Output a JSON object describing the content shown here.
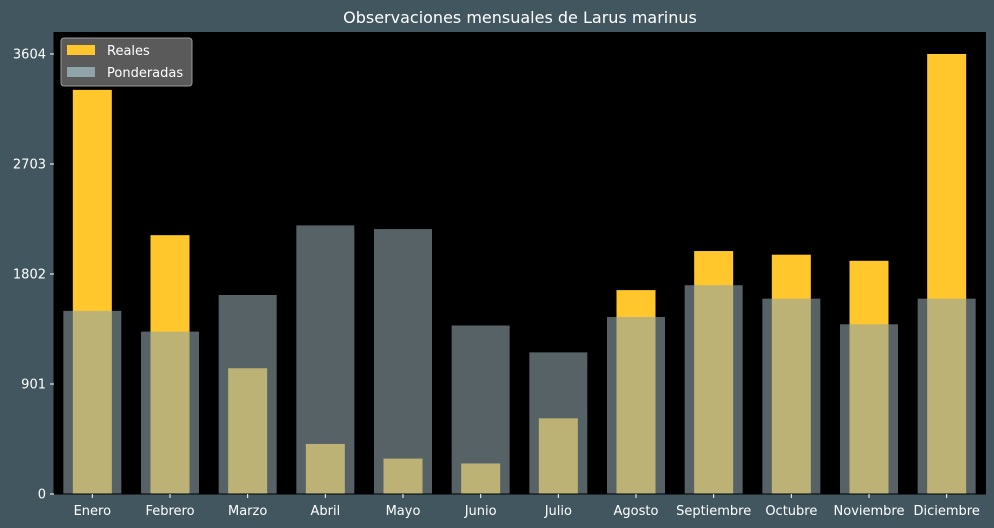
{
  "chart_data": {
    "type": "bar",
    "title": "Observaciones mensuales de Larus marinus",
    "xlabel": "",
    "ylabel": "",
    "categories": [
      "Enero",
      "Febrero",
      "Marzo",
      "Abril",
      "Mayo",
      "Junio",
      "Julio",
      "Agosto",
      "Septiembre",
      "Octubre",
      "Noviembre",
      "Diciembre"
    ],
    "series": [
      {
        "name": "Reales",
        "color": "#ffc72c",
        "values": [
          3310,
          2120,
          1030,
          410,
          290,
          250,
          620,
          1670,
          1990,
          1960,
          1910,
          3604
        ]
      },
      {
        "name": "Ponderadas",
        "color": "#8fa3a9",
        "values": [
          1500,
          1330,
          1630,
          2200,
          2170,
          1380,
          1160,
          1450,
          1710,
          1600,
          1390,
          1600
        ]
      }
    ],
    "yticks": [
      0,
      901,
      1802,
      2703,
      3604
    ],
    "ylim": [
      0,
      3784
    ],
    "legend_position": "top-left",
    "grid": false,
    "colors": {
      "figure_background": "#41565f",
      "plot_background": "#000000",
      "overlap": "#d4cd8c"
    }
  }
}
